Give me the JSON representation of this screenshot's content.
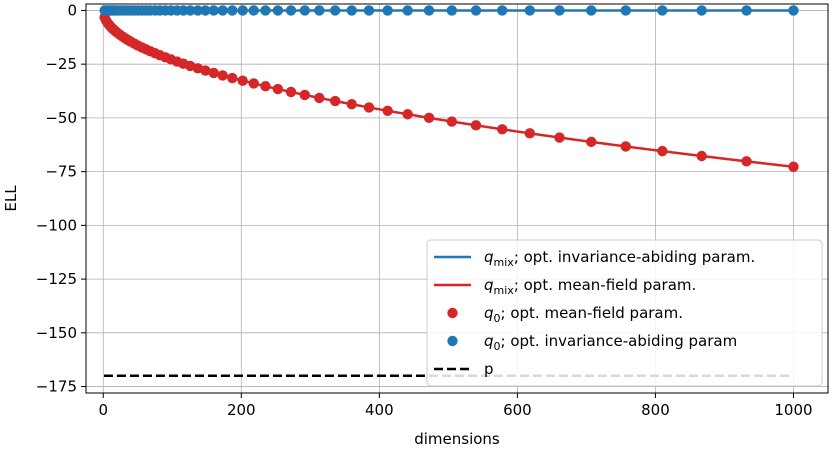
{
  "chart_data": {
    "type": "line",
    "title": "",
    "xlabel": "dimensions",
    "ylabel": "ELL",
    "xlim": [
      -25,
      1050
    ],
    "ylim": [
      -178,
      3
    ],
    "x_ticks": [
      0,
      200,
      400,
      600,
      800,
      1000
    ],
    "y_ticks": [
      0,
      -25,
      -50,
      -75,
      -100,
      -125,
      -150,
      -175
    ],
    "x_tick_labels": [
      "0",
      "200",
      "400",
      "600",
      "800",
      "1000"
    ],
    "y_tick_labels": [
      "0",
      "−25",
      "−50",
      "−75",
      "−100",
      "−125",
      "−150",
      "−175"
    ],
    "grid": true,
    "legend_position": "lower-right",
    "ell_model": {
      "mean_field_coefficient": -2.3,
      "invariance_abiding_value": 0,
      "p_value": -170
    },
    "marker_dimensions": [
      2,
      4,
      6,
      8,
      10,
      12,
      14,
      16,
      18,
      20,
      24,
      28,
      32,
      36,
      40,
      45,
      50,
      56,
      62,
      68,
      75,
      82,
      90,
      98,
      107,
      116,
      126,
      137,
      148,
      160,
      173,
      187,
      202,
      218,
      235,
      253,
      272,
      292,
      313,
      336,
      360,
      385,
      412,
      441,
      472,
      505,
      540,
      578,
      618,
      661,
      707,
      757,
      810,
      867,
      932,
      1000
    ],
    "series": [
      {
        "name": "q_mix; opt. invariance-abiding param.",
        "kind": "line",
        "color": "#1f77b4",
        "values_at": [
          [
            1,
            0
          ],
          [
            1000,
            0
          ]
        ]
      },
      {
        "name": "q_mix; opt. mean-field param.",
        "kind": "line",
        "color": "#d62728",
        "values_at": [
          [
            1,
            -2.3
          ],
          [
            100,
            -23
          ],
          [
            200,
            -32.5
          ],
          [
            400,
            -46
          ],
          [
            600,
            -56.3
          ],
          [
            800,
            -65.1
          ],
          [
            1000,
            -72.7
          ]
        ]
      },
      {
        "name": "q_0; opt. mean-field param.",
        "kind": "scatter",
        "color": "#d62728"
      },
      {
        "name": "q_0; opt. invariance-abiding param",
        "kind": "scatter",
        "color": "#1f77b4"
      },
      {
        "name": "p",
        "kind": "dashed-line",
        "color": "#000000",
        "values_at": [
          [
            1,
            -170
          ],
          [
            1000,
            -170
          ]
        ]
      }
    ],
    "legend": [
      {
        "key": "mix_ia",
        "math": "q",
        "sub": "mix",
        "text": "; opt. invariance-abiding param."
      },
      {
        "key": "mix_mf",
        "math": "q",
        "sub": "mix",
        "text": "; opt. mean-field param."
      },
      {
        "key": "q0_mf",
        "math": "q",
        "sub": "0",
        "text": "; opt. mean-field param."
      },
      {
        "key": "q0_ia",
        "math": "q",
        "sub": "0",
        "text": "; opt. invariance-abiding param"
      },
      {
        "key": "p",
        "math": "",
        "sub": "",
        "text": "p"
      }
    ]
  }
}
